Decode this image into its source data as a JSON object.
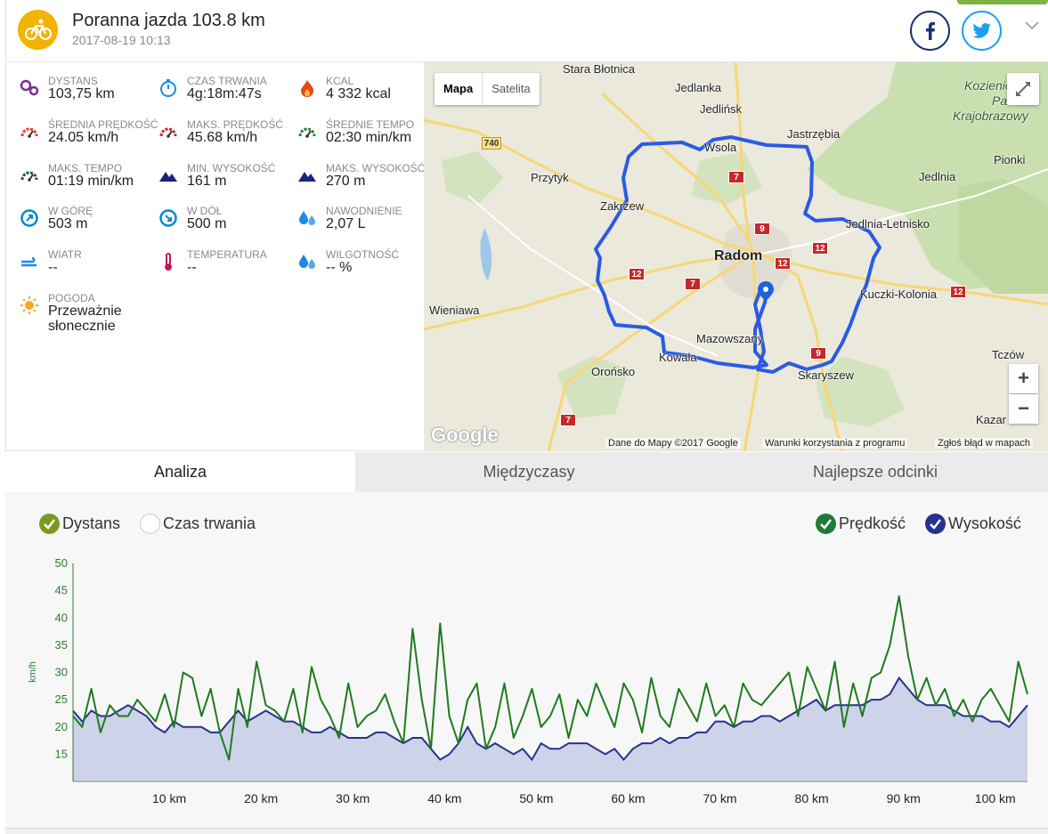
{
  "activity": {
    "title": "Poranna jazda 103.8 km",
    "date": "2017-08-19 10:13",
    "sport_icon": "cycling-icon"
  },
  "share": {
    "facebook_icon": "facebook-icon",
    "twitter_icon": "twitter-icon",
    "expand_icon": "chevron-down-icon"
  },
  "stats": [
    {
      "label": "DYSTANS",
      "value": "103,75 km",
      "icon": "route-icon",
      "color": "#7b2d8e"
    },
    {
      "label": "CZAS TRWANIA",
      "value": "4g:18m:47s",
      "icon": "stopwatch-icon",
      "color": "#1e88e5"
    },
    {
      "label": "KCAL",
      "value": "4 332 kcal",
      "icon": "flame-icon",
      "color": "#e64a19"
    },
    {
      "label": "ŚREDNIA PRĘDKOŚĆ",
      "value": "24.05 km/h",
      "icon": "speedometer-icon",
      "color": "#e53935"
    },
    {
      "label": "MAKS. PRĘDKOŚĆ",
      "value": "45.68 km/h",
      "icon": "speedometer-max-icon",
      "color": "#c62828"
    },
    {
      "label": "ŚREDNIE TEMPO",
      "value": "02:30 min/km",
      "icon": "pace-icon",
      "color": "#2e7d32"
    },
    {
      "label": "MAKS. TEMPO",
      "value": "01:19 min/km",
      "icon": "pace-max-icon",
      "color": "#1b5e20"
    },
    {
      "label": "MIN. WYSOKOŚĆ",
      "value": "161 m",
      "icon": "mountain-min-icon",
      "color": "#1a237e"
    },
    {
      "label": "MAKS. WYSOKOŚĆ",
      "value": "270 m",
      "icon": "mountain-max-icon",
      "color": "#1a237e"
    },
    {
      "label": "W GÓRĘ",
      "value": "503 m",
      "icon": "ascent-icon",
      "color": "#0288d1"
    },
    {
      "label": "W DÓŁ",
      "value": "500 m",
      "icon": "descent-icon",
      "color": "#0288d1"
    },
    {
      "label": "NAWODNIENIE",
      "value": "2,07 L",
      "icon": "water-drops-icon",
      "color": "#1e88e5"
    },
    {
      "label": "WIATR",
      "value": "--",
      "icon": "wind-icon",
      "color": "#1e88e5"
    },
    {
      "label": "TEMPERATURA",
      "value": "--",
      "icon": "thermometer-icon",
      "color": "#c2185b"
    },
    {
      "label": "WILGOTNOŚĆ",
      "value": "-- %",
      "icon": "humidity-icon",
      "color": "#1e88e5"
    }
  ],
  "weather": {
    "label": "POGODA",
    "value_line1": "Przeważnie",
    "value_line2": "słonecznie",
    "icon": "sun-icon",
    "color": "#f9a825"
  },
  "map": {
    "type_map": "Mapa",
    "type_satellite": "Satelita",
    "zoom_in": "+",
    "zoom_out": "−",
    "logo": "Google",
    "footer_data": "Dane do Mapy ©2017 Google",
    "footer_terms": "Warunki korzystania z programu",
    "footer_report": "Zgłoś błąd w mapach",
    "route_color": "#2b5be3",
    "places": [
      "Stara Błotnica",
      "Jedlanka",
      "Jedlińsk",
      "Jastrzębia",
      "Wsola",
      "Przytyk",
      "Zakrzew",
      "Jedlnia",
      "Jedlnia-Letnisko",
      "Pionki",
      "Radom",
      "Kuczki-Kolonia",
      "Wieniawa",
      "Mazowszany",
      "Kowala",
      "Orońsko",
      "Skaryszew",
      "Tczów",
      "Kazar",
      "Kozienicki",
      "Park",
      "Krajobrazowy"
    ],
    "roads": [
      "740",
      "7",
      "9",
      "12",
      "12",
      "12",
      "7",
      "12",
      "9",
      "7"
    ]
  },
  "tabs": [
    "Analiza",
    "Międzyczasy",
    "Najlepsze odcinki"
  ],
  "chart_options": {
    "axis_distance": "Dystans",
    "axis_time": "Czas trwania",
    "series_speed": "Prędkość",
    "series_elevation": "Wysokość"
  },
  "colors": {
    "accent_yellow": "#f2b301",
    "speed_green": "#1f7a1f",
    "elevation_blue": "#27328e",
    "elevation_fill": "#c5cce6",
    "facebook_blue": "#1a2f74",
    "twitter_blue": "#1da1f2"
  },
  "chart_data": {
    "type": "line",
    "ylabel": "km/h",
    "ylim": [
      10,
      50
    ],
    "yticks": [
      15,
      20,
      25,
      30,
      35,
      40,
      45,
      50
    ],
    "xlim": [
      0,
      104
    ],
    "xticks": [
      10,
      20,
      30,
      40,
      50,
      60,
      70,
      80,
      90,
      100
    ],
    "xtick_labels": [
      "10 km",
      "20 km",
      "30 km",
      "40 km",
      "50 km",
      "60 km",
      "70 km",
      "80 km",
      "90 km",
      "100 km"
    ],
    "series": [
      {
        "name": "Prędkość",
        "color": "#1f7a1f",
        "x": [
          0,
          1,
          2,
          3,
          4,
          5,
          6,
          7,
          8,
          9,
          10,
          11,
          12,
          13,
          14,
          15,
          16,
          17,
          18,
          19,
          20,
          21,
          22,
          23,
          24,
          25,
          26,
          27,
          28,
          29,
          30,
          31,
          32,
          33,
          34,
          35,
          36,
          37,
          38,
          39,
          40,
          41,
          42,
          43,
          44,
          45,
          46,
          47,
          48,
          49,
          50,
          51,
          52,
          53,
          54,
          55,
          56,
          57,
          58,
          59,
          60,
          61,
          62,
          63,
          64,
          65,
          66,
          67,
          68,
          69,
          70,
          71,
          72,
          73,
          74,
          75,
          76,
          77,
          78,
          79,
          80,
          81,
          82,
          83,
          84,
          85,
          86,
          87,
          88,
          89,
          90,
          91,
          92,
          93,
          94,
          95,
          96,
          97,
          98,
          99,
          100,
          101,
          102,
          103,
          104
        ],
        "values": [
          22,
          20,
          27,
          19,
          24,
          22,
          22,
          25,
          23,
          21,
          26,
          20,
          30,
          29,
          22,
          27,
          19,
          14,
          27,
          20,
          32,
          24,
          23,
          21,
          27,
          19,
          31,
          25,
          22,
          18,
          28,
          20,
          22,
          23,
          26,
          21,
          17,
          38,
          25,
          16,
          39,
          22,
          17,
          25,
          28,
          16,
          20,
          28,
          18,
          22,
          27,
          20,
          22,
          26,
          18,
          25,
          22,
          28,
          24,
          20,
          28,
          25,
          19,
          29,
          22,
          20,
          27,
          24,
          21,
          28,
          22,
          24,
          20,
          28,
          25,
          24,
          26,
          28,
          30,
          22,
          31,
          27,
          23,
          32,
          20,
          28,
          22,
          29,
          30,
          35,
          44,
          33,
          25,
          29,
          24,
          27,
          22,
          25,
          21,
          25,
          27,
          24,
          21,
          32,
          26
        ]
      },
      {
        "name": "Wysokość",
        "color": "#27328e",
        "x": [
          0,
          1,
          2,
          3,
          4,
          5,
          6,
          7,
          8,
          9,
          10,
          11,
          12,
          13,
          14,
          15,
          16,
          17,
          18,
          19,
          20,
          21,
          22,
          23,
          24,
          25,
          26,
          27,
          28,
          29,
          30,
          31,
          32,
          33,
          34,
          35,
          36,
          37,
          38,
          39,
          40,
          41,
          42,
          43,
          44,
          45,
          46,
          47,
          48,
          49,
          50,
          51,
          52,
          53,
          54,
          55,
          56,
          57,
          58,
          59,
          60,
          61,
          62,
          63,
          64,
          65,
          66,
          67,
          68,
          69,
          70,
          71,
          72,
          73,
          74,
          75,
          76,
          77,
          78,
          79,
          80,
          81,
          82,
          83,
          84,
          85,
          86,
          87,
          88,
          89,
          90,
          91,
          92,
          93,
          94,
          95,
          96,
          97,
          98,
          99,
          100,
          101,
          102,
          103,
          104
        ],
        "values": [
          23,
          21,
          23,
          22,
          22,
          23,
          24,
          23,
          22,
          20,
          19,
          21,
          20,
          20,
          20,
          19,
          19,
          21,
          23,
          21,
          22,
          23,
          22,
          21,
          21,
          20,
          19,
          19,
          20,
          19,
          18,
          18,
          18,
          19,
          19,
          18,
          17,
          18,
          18,
          16,
          14,
          15,
          17,
          20,
          17,
          16,
          17,
          16,
          15,
          16,
          14,
          17,
          16,
          16,
          17,
          17,
          17,
          16,
          15,
          16,
          14,
          16,
          17,
          17,
          18,
          17,
          18,
          18,
          19,
          19,
          21,
          21,
          20,
          21,
          21,
          22,
          22,
          21,
          22,
          23,
          24,
          25,
          23,
          24,
          24,
          24,
          24,
          25,
          25,
          26,
          29,
          27,
          25,
          24,
          24,
          24,
          23,
          22,
          22,
          22,
          21,
          21,
          20,
          22,
          24
        ]
      }
    ]
  }
}
